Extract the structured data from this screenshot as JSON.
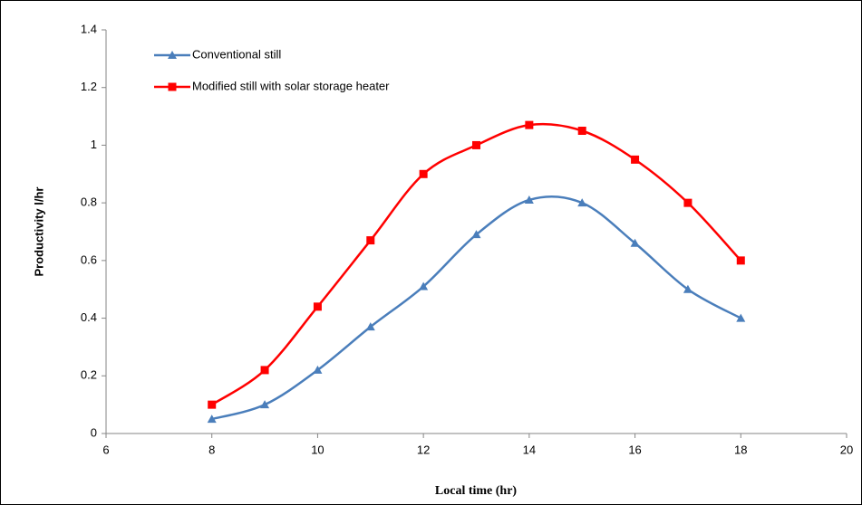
{
  "chart_data": {
    "type": "line",
    "xlabel": "Local time (hr)",
    "ylabel": "Productivity l/hr",
    "x": [
      8,
      9,
      10,
      11,
      12,
      13,
      14,
      15,
      16,
      17,
      18
    ],
    "series": [
      {
        "name": "Conventional still",
        "color": "#4a7ebb",
        "marker": "triangle",
        "values": [
          0.05,
          0.1,
          0.22,
          0.37,
          0.51,
          0.69,
          0.81,
          0.8,
          0.66,
          0.5,
          0.4
        ]
      },
      {
        "name": "Modified still with solar storage heater",
        "color": "#ff0000",
        "marker": "square",
        "values": [
          0.1,
          0.22,
          0.44,
          0.67,
          0.9,
          1.0,
          1.07,
          1.05,
          0.95,
          0.8,
          0.6
        ]
      }
    ],
    "xlim": [
      6,
      20
    ],
    "xticks": [
      6,
      8,
      10,
      12,
      14,
      16,
      18,
      20
    ],
    "ylim": [
      0,
      1.4
    ],
    "yticks": [
      0,
      0.2,
      0.4,
      0.6,
      0.8,
      1,
      1.2,
      1.4
    ],
    "grid": false,
    "smooth": true,
    "legend": "upper left"
  }
}
